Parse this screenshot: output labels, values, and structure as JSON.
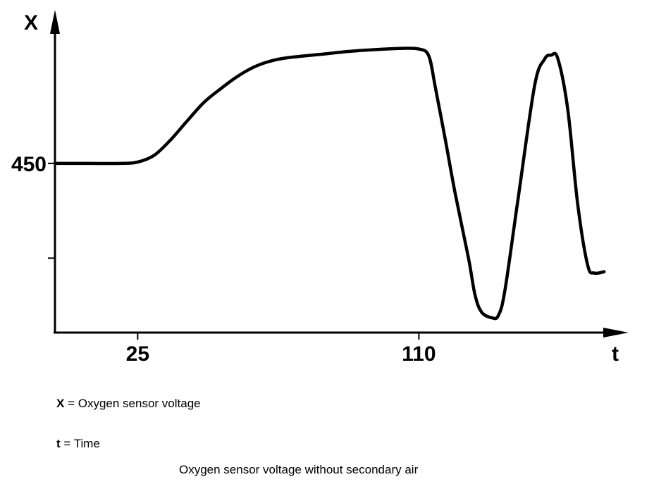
{
  "chart_data": {
    "type": "line",
    "title": "",
    "caption": "Oxygen sensor voltage without secondary air",
    "y_axis_letter": "X",
    "x_axis_letter": "t",
    "y_tick_labels": [
      {
        "value": 450,
        "label": "450"
      },
      {
        "value": 310,
        "label": ""
      }
    ],
    "x_tick_labels": [
      {
        "value": 25,
        "label": "25"
      },
      {
        "value": 110,
        "label": "110"
      }
    ],
    "xlim": [
      0,
      170
    ],
    "ylim": [
      200,
      680
    ],
    "grid": false,
    "legend": [
      {
        "symbol": "X",
        "separator": "=",
        "description": "Oxygen sensor voltage"
      },
      {
        "symbol": "t",
        "separator": "=",
        "description": "Time"
      }
    ],
    "series": [
      {
        "color": "#000000",
        "x": [
          0,
          10,
          20,
          25,
          30,
          35,
          40,
          45,
          50,
          55,
          60,
          65,
          70,
          80,
          90,
          100,
          105,
          110,
          113,
          115,
          118,
          121,
          125,
          127,
          129,
          132,
          134,
          136,
          140,
          145,
          148,
          150,
          152,
          155,
          158,
          161,
          163,
          166
        ],
        "y": [
          450,
          450,
          450,
          452,
          462,
          485,
          513,
          540,
          560,
          578,
          592,
          601,
          606,
          611,
          616,
          619,
          620,
          619,
          609,
          562,
          485,
          405,
          310,
          255,
          230,
          222,
          225,
          262,
          398,
          565,
          604,
          610,
          605,
          530,
          390,
          300,
          288,
          290
        ]
      }
    ]
  }
}
